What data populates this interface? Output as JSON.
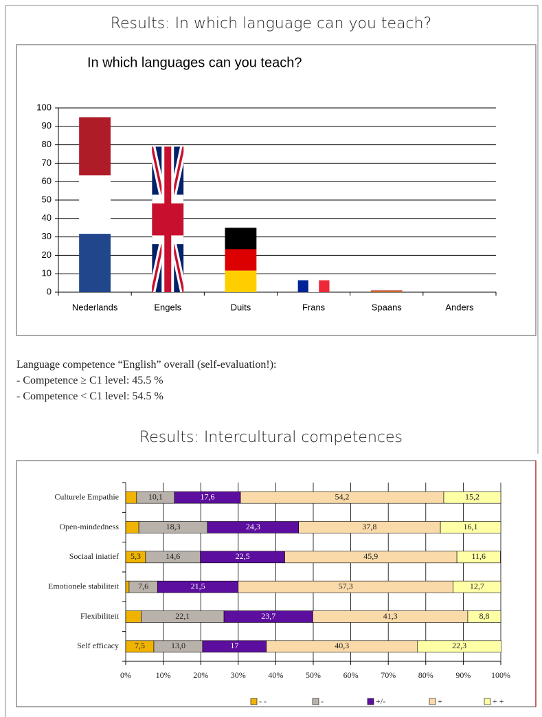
{
  "headings": [
    "Results: In which language can you teach?",
    "Results: Intercultural competences"
  ],
  "notes": [
    "Language competence “English” overall (self-evaluation!):",
    "- Competence ≥ C1 level: 45.5 %",
    "- Competence < C1 level: 54.5 %"
  ],
  "chart_data": [
    {
      "type": "bar",
      "title": "In which languages can you teach?",
      "categories": [
        "Nederlands",
        "Engels",
        "Duits",
        "Frans",
        "Spaans",
        "Anders"
      ],
      "values": [
        95,
        79,
        35,
        6.5,
        1,
        0
      ],
      "flag_colors": [
        [
          "#ae1c28",
          "#ffffff",
          "#21468b"
        ],
        [
          "#012169",
          "#ffffff",
          "#c8102e"
        ],
        [
          "#000000",
          "#dd0000",
          "#ffce00"
        ],
        [
          "#002395",
          "#ffffff",
          "#ed2939"
        ],
        [
          "#aa151b",
          "#f1bf00",
          "#aa151b"
        ],
        []
      ],
      "flag_layout": [
        "horizontal",
        "union",
        "horizontal",
        "vertical",
        "horizontal",
        "horizontal"
      ],
      "ylim": [
        0,
        100
      ],
      "yticks": [
        0,
        10,
        20,
        30,
        40,
        50,
        60,
        70,
        80,
        90,
        100
      ],
      "grid": true
    },
    {
      "type": "stacked_bar",
      "orientation": "horizontal",
      "categories": [
        "Culturele Empathie",
        "Open-mindedness",
        "Sociaal iniatief",
        "Emotionele stabiliteit",
        "Flexibiliteit",
        "Self efficacy"
      ],
      "series": [
        {
          "name": "- -",
          "color": "#f0b400",
          "values": [
            2.9,
            3.5,
            5.3,
            0.9,
            4.1,
            7.5
          ],
          "value_labels": [
            null,
            null,
            "5,3",
            null,
            null,
            "7,5"
          ]
        },
        {
          "name": "-",
          "color": "#b9b2ab",
          "values": [
            10.1,
            18.3,
            14.6,
            7.6,
            22.1,
            13.0
          ],
          "value_labels": [
            "10,1",
            "18,3",
            "14,6",
            "7,6",
            "22,1",
            "13,0"
          ]
        },
        {
          "name": "+/-",
          "color": "#5c0f9e",
          "values": [
            17.6,
            24.3,
            22.5,
            21.5,
            23.7,
            17
          ],
          "value_labels": [
            "17,6",
            "24,3",
            "22,5",
            "21,5",
            "23,7",
            "17"
          ]
        },
        {
          "name": "+",
          "color": "#fadaa9",
          "values": [
            54.2,
            37.8,
            45.9,
            57.3,
            41.3,
            40.3
          ],
          "value_labels": [
            "54,2",
            "37,8",
            "45,9",
            "57,3",
            "41,3",
            "40,3"
          ]
        },
        {
          "name": "+ +",
          "color": "#ffffa6",
          "values": [
            15.2,
            16.1,
            11.6,
            12.7,
            8.8,
            22.3
          ],
          "value_labels": [
            "15,2",
            "16,1",
            "11,6",
            "12,7",
            "8,8",
            "22,3"
          ]
        }
      ],
      "xlim": [
        0,
        100
      ],
      "xticks": [
        {
          "value": 0,
          "label": "0%"
        },
        {
          "value": 10,
          "label": "10%"
        },
        {
          "value": 20,
          "label": "20%"
        },
        {
          "value": 30,
          "label": "30%"
        },
        {
          "value": 40,
          "label": "40%"
        },
        {
          "value": 50,
          "label": "50%"
        },
        {
          "value": 60,
          "label": "60%"
        },
        {
          "value": 70,
          "label": "70%"
        },
        {
          "value": 80,
          "label": "80%"
        },
        {
          "value": 90,
          "label": "90%"
        },
        {
          "value": 100,
          "label": "100%"
        }
      ],
      "grid": true,
      "legend": "bottom"
    }
  ]
}
